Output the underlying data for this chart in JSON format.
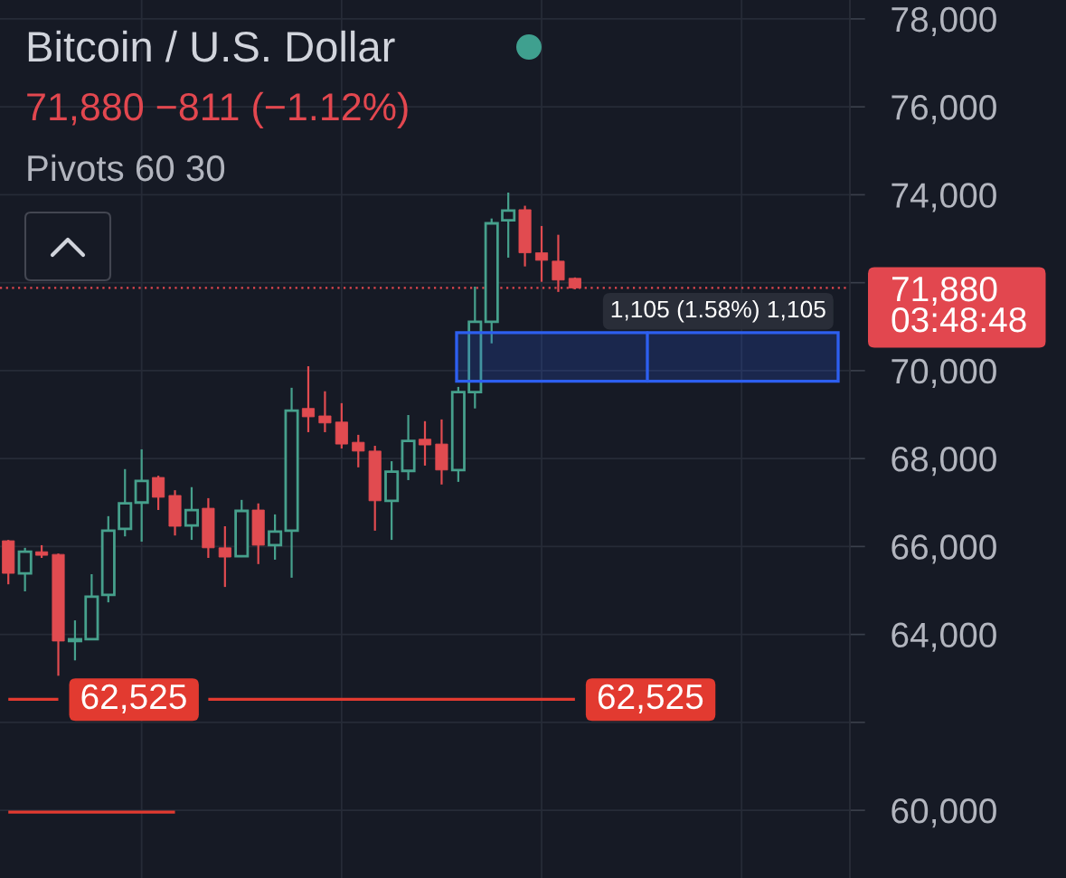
{
  "chart_data": {
    "type": "candlestick",
    "title": "Bitcoin / U.S. Dollar",
    "subtitle": "71,880 −811 (−1.12%)",
    "annotations": [
      "Pivots 60 30"
    ],
    "categories": [
      null,
      null,
      null,
      null,
      null,
      null,
      null,
      null,
      null,
      null,
      null,
      null,
      null,
      null,
      null,
      null,
      null,
      null,
      null,
      null,
      null,
      null,
      null,
      null,
      null,
      null,
      null,
      null,
      null,
      null,
      null,
      null,
      null,
      null,
      null,
      null,
      null,
      null,
      null,
      null,
      null,
      null,
      null,
      null,
      null,
      null,
      null,
      null,
      null,
      null,
      null
    ],
    "ohlc": [
      [
        66130,
        66150,
        65140,
        65390
      ],
      [
        65390,
        65970,
        64980,
        65880
      ],
      [
        65880,
        66030,
        65740,
        65800
      ],
      [
        65820,
        65840,
        63060,
        63850
      ],
      [
        63850,
        64320,
        63410,
        63890
      ],
      [
        63890,
        65370,
        63870,
        64860
      ],
      [
        64900,
        66690,
        64730,
        66360
      ],
      [
        66400,
        67760,
        66230,
        66980
      ],
      [
        67000,
        68210,
        66110,
        67490
      ],
      [
        67570,
        67610,
        66830,
        67120
      ],
      [
        67160,
        67280,
        66250,
        66460
      ],
      [
        66480,
        67350,
        66150,
        66830
      ],
      [
        66870,
        67100,
        65740,
        65970
      ],
      [
        65970,
        66460,
        65080,
        65760
      ],
      [
        65780,
        67060,
        65760,
        66810
      ],
      [
        66830,
        66980,
        65600,
        66030
      ],
      [
        66030,
        66730,
        65700,
        66340
      ],
      [
        66360,
        69610,
        65290,
        69090
      ],
      [
        69140,
        70100,
        68600,
        68950
      ],
      [
        68970,
        69530,
        68600,
        68810
      ],
      [
        68830,
        69260,
        68230,
        68330
      ],
      [
        68370,
        68540,
        67800,
        68170
      ],
      [
        68170,
        68290,
        66360,
        67040
      ],
      [
        67040,
        67940,
        66150,
        67700
      ],
      [
        67720,
        68990,
        67510,
        68400
      ],
      [
        68440,
        68850,
        67840,
        68310
      ],
      [
        68330,
        68890,
        67410,
        67740
      ],
      [
        67740,
        69630,
        67470,
        69510
      ],
      [
        69510,
        71910,
        69140,
        71110
      ],
      [
        71110,
        73460,
        70620,
        73350
      ],
      [
        73420,
        74050,
        72570,
        73640
      ],
      [
        73660,
        73750,
        72370,
        72680
      ],
      [
        72680,
        73290,
        72020,
        72510
      ],
      [
        72490,
        73090,
        71790,
        72060
      ],
      [
        72100,
        72120,
        71850,
        71880
      ],
      null,
      null,
      null,
      null,
      null,
      null,
      null,
      null,
      null,
      null,
      null,
      null,
      null,
      null,
      null,
      null
    ],
    "colors": [
      "#e14b50",
      "#46a08c",
      "#e14b50",
      "#e14b50",
      "#46a08c",
      "#46a08c",
      "#46a08c",
      "#46a08c",
      "#46a08c",
      "#e14b50",
      "#e14b50",
      "#46a08c",
      "#e14b50",
      "#e14b50",
      "#46a08c",
      "#e14b50",
      "#46a08c",
      "#46a08c",
      "#e14b50",
      "#e14b50",
      "#e14b50",
      "#e14b50",
      "#e14b50",
      "#46a08c",
      "#46a08c",
      "#e14b50",
      "#e14b50",
      "#46a08c",
      "#46a08c",
      "#46a08c",
      "#46a08c",
      "#e14b50",
      "#e14b50",
      "#e14b50",
      "#e14b50",
      null,
      null,
      null,
      null,
      null,
      null,
      null,
      null,
      null,
      null,
      null,
      null,
      null,
      null,
      null,
      null
    ],
    "series": [
      {
        "type": "line",
        "color": "#e23a30",
        "values": [
          62525,
          62525,
          62525,
          62525,
          null,
          null,
          null,
          null,
          null,
          null,
          null,
          null,
          null,
          null,
          null,
          null,
          null,
          null,
          null,
          null,
          null,
          null,
          null,
          null,
          null,
          null,
          null,
          null,
          null,
          null,
          null,
          null,
          null,
          null,
          null,
          null,
          null,
          null,
          null,
          null,
          null,
          null,
          null,
          null,
          null,
          null,
          null,
          null,
          null,
          null,
          null
        ],
        "value_labels": [
          null,
          null,
          null,
          "62,525",
          null,
          null,
          null,
          null,
          null,
          null,
          null,
          null,
          null,
          null,
          null,
          null,
          null,
          null,
          null,
          null,
          null,
          null,
          null,
          null,
          null,
          null,
          null,
          null,
          null,
          null,
          null,
          null,
          null,
          null,
          null,
          null,
          null,
          null,
          null,
          null,
          null,
          null,
          null,
          null,
          null,
          null,
          null,
          null,
          null,
          null,
          null
        ]
      },
      {
        "type": "line",
        "color": "#e23a30",
        "values": [
          null,
          null,
          null,
          null,
          null,
          null,
          null,
          null,
          null,
          null,
          null,
          null,
          62525,
          62525,
          62525,
          62525,
          62525,
          62525,
          62525,
          62525,
          62525,
          62525,
          62525,
          62525,
          62525,
          62525,
          62525,
          62525,
          62525,
          62525,
          62525,
          62525,
          62525,
          62525,
          62525,
          null,
          null,
          null,
          null,
          null,
          null,
          null,
          null,
          null,
          null,
          null,
          null,
          null,
          null,
          null,
          null
        ],
        "value_labels": [
          null,
          null,
          null,
          null,
          null,
          null,
          null,
          null,
          null,
          null,
          null,
          null,
          null,
          null,
          null,
          null,
          null,
          null,
          null,
          null,
          null,
          null,
          null,
          null,
          null,
          null,
          null,
          null,
          null,
          null,
          null,
          null,
          null,
          null,
          "62,525",
          null,
          null,
          null,
          null,
          null,
          null,
          null,
          null,
          null,
          null,
          null,
          null,
          null,
          null,
          null,
          null
        ]
      },
      {
        "type": "line",
        "color": "#e23a30",
        "values": [
          59960,
          59960,
          59960,
          59960,
          59960,
          59960,
          59960,
          59960,
          59960,
          59960,
          59960,
          null,
          null,
          null,
          null,
          null,
          null,
          null,
          null,
          null,
          null,
          null,
          null,
          null,
          null,
          null,
          null,
          null,
          null,
          null,
          null,
          null,
          null,
          null,
          null,
          null,
          null,
          null,
          null,
          null,
          null,
          null,
          null,
          null,
          null,
          null,
          null,
          null,
          null,
          null,
          null
        ]
      }
    ],
    "ref_lines": [
      {
        "axis": "y",
        "value": 71880,
        "label": "71,880\n03:48:48",
        "color": "#e2474f",
        "line_style": "dotted"
      }
    ],
    "bands": [
      {
        "axis": "y",
        "from": 69760,
        "to": 70865,
        "label": "1,105 (1.58%) 1,105",
        "color": "#2d5ff0"
      }
    ],
    "ylim": [
      58460,
      78430
    ],
    "yticks": [
      {
        "value": 60000,
        "label": "60,000"
      },
      {
        "value": 62000,
        "label": null
      },
      {
        "value": 64000,
        "label": "64,000"
      },
      {
        "value": 66000,
        "label": "66,000"
      },
      {
        "value": 68000,
        "label": "68,000"
      },
      {
        "value": 70000,
        "label": "70,000"
      },
      {
        "value": 72000,
        "label": null
      },
      {
        "value": 74000,
        "label": "74,000"
      },
      {
        "value": 76000,
        "label": "76,000"
      },
      {
        "value": 78000,
        "label": "78,000"
      }
    ],
    "grid": true,
    "tick_labels": "y"
  }
}
